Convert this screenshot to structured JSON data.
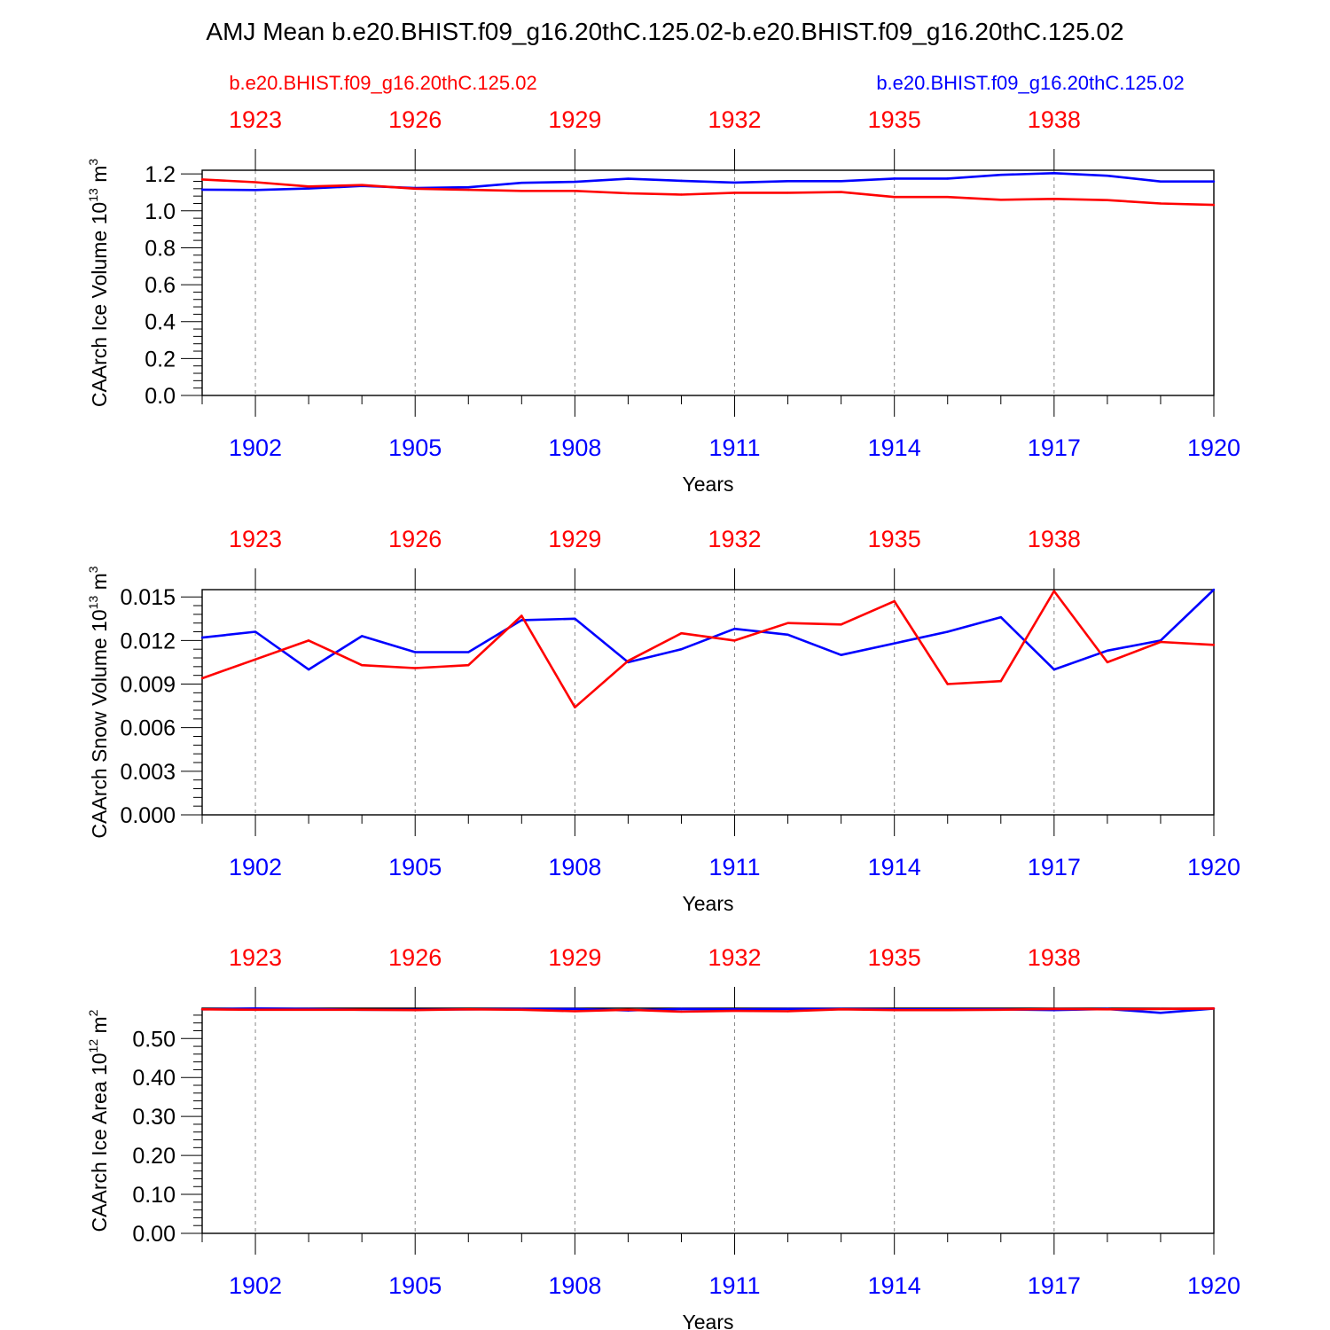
{
  "title": "AMJ Mean b.e20.BHIST.f09_g16.20thC.125.02-b.e20.BHIST.f09_g16.20thC.125.02",
  "legend": {
    "left_label": "b.e20.BHIST.f09_g16.20thC.125.02",
    "right_label": "b.e20.BHIST.f09_g16.20thC.125.02"
  },
  "colors": {
    "red": "#ff0000",
    "blue": "#0000ff",
    "axis": "#000000",
    "grid": "#888888"
  },
  "chart_data": [
    {
      "type": "line",
      "ylabel": "CAArch Ice Volume 10",
      "ylabel_exp": "13",
      "ylabel_unit": " m",
      "ylabel_unit_exp": "3",
      "xlabel": "Years",
      "ylim": [
        0,
        1.22
      ],
      "yticks": [
        "0.0",
        "0.2",
        "0.4",
        "0.6",
        "0.8",
        "1.0",
        "1.2"
      ],
      "ytick_values": [
        0,
        0.2,
        0.4,
        0.6,
        0.8,
        1.0,
        1.2
      ],
      "bottom_ticks": [
        "1902",
        "1905",
        "1908",
        "1911",
        "1914",
        "1917",
        "1920"
      ],
      "top_ticks": [
        "1923",
        "1926",
        "1929",
        "1932",
        "1935",
        "1938"
      ],
      "x": [
        1901,
        1902,
        1903,
        1904,
        1905,
        1906,
        1907,
        1908,
        1909,
        1910,
        1911,
        1912,
        1913,
        1914,
        1915,
        1916,
        1917,
        1918,
        1919,
        1920
      ],
      "series": [
        {
          "color": "blue",
          "axis": "bottom",
          "values": [
            1.115,
            1.113,
            1.121,
            1.135,
            1.124,
            1.128,
            1.152,
            1.157,
            1.174,
            1.163,
            1.153,
            1.161,
            1.161,
            1.175,
            1.175,
            1.195,
            1.204,
            1.19,
            1.159,
            1.159
          ]
        },
        {
          "color": "red",
          "axis": "top",
          "values": [
            1.17,
            1.155,
            1.132,
            1.14,
            1.12,
            1.114,
            1.108,
            1.108,
            1.095,
            1.088,
            1.098,
            1.098,
            1.102,
            1.075,
            1.075,
            1.06,
            1.065,
            1.058,
            1.04,
            1.032
          ]
        }
      ]
    },
    {
      "type": "line",
      "ylabel": "CAArch Snow Volume 10",
      "ylabel_exp": "13",
      "ylabel_unit": " m",
      "ylabel_unit_exp": "3",
      "xlabel": "Years",
      "ylim": [
        0,
        0.0155
      ],
      "yticks": [
        "0.000",
        "0.003",
        "0.006",
        "0.009",
        "0.012",
        "0.015"
      ],
      "ytick_values": [
        0,
        0.003,
        0.006,
        0.009,
        0.012,
        0.015
      ],
      "bottom_ticks": [
        "1902",
        "1905",
        "1908",
        "1911",
        "1914",
        "1917",
        "1920"
      ],
      "top_ticks": [
        "1923",
        "1926",
        "1929",
        "1932",
        "1935",
        "1938"
      ],
      "x": [
        1901,
        1902,
        1903,
        1904,
        1905,
        1906,
        1907,
        1908,
        1909,
        1910,
        1911,
        1912,
        1913,
        1914,
        1915,
        1916,
        1917,
        1918,
        1919,
        1920
      ],
      "series": [
        {
          "color": "blue",
          "axis": "bottom",
          "values": [
            0.0122,
            0.0126,
            0.01,
            0.0123,
            0.0112,
            0.0112,
            0.0134,
            0.0135,
            0.0105,
            0.0114,
            0.0128,
            0.0124,
            0.011,
            0.0118,
            0.0126,
            0.0136,
            0.01,
            0.0113,
            0.012,
            0.0155
          ]
        },
        {
          "color": "red",
          "axis": "top",
          "values": [
            0.0094,
            0.0107,
            0.012,
            0.0103,
            0.0101,
            0.0103,
            0.0137,
            0.0074,
            0.0106,
            0.0125,
            0.012,
            0.0132,
            0.0131,
            0.0147,
            0.009,
            0.0092,
            0.0154,
            0.0105,
            0.0119,
            0.0117
          ]
        }
      ]
    },
    {
      "type": "line",
      "ylabel": "CAArch Ice Area 10",
      "ylabel_exp": "12",
      "ylabel_unit": " m",
      "ylabel_unit_exp": "2",
      "xlabel": "Years",
      "ylim": [
        0,
        0.578
      ],
      "yticks": [
        "0.00",
        "0.10",
        "0.20",
        "0.30",
        "0.40",
        "0.50"
      ],
      "ytick_values": [
        0,
        0.1,
        0.2,
        0.3,
        0.4,
        0.5
      ],
      "bottom_ticks": [
        "1902",
        "1905",
        "1908",
        "1911",
        "1914",
        "1917",
        "1920"
      ],
      "top_ticks": [
        "1923",
        "1926",
        "1929",
        "1932",
        "1935",
        "1938"
      ],
      "x": [
        1901,
        1902,
        1903,
        1904,
        1905,
        1906,
        1907,
        1908,
        1909,
        1910,
        1911,
        1912,
        1913,
        1914,
        1915,
        1916,
        1917,
        1918,
        1919,
        1920
      ],
      "series": [
        {
          "color": "blue",
          "axis": "bottom",
          "values": [
            0.575,
            0.577,
            0.576,
            0.574,
            0.574,
            0.575,
            0.576,
            0.576,
            0.572,
            0.576,
            0.575,
            0.576,
            0.576,
            0.575,
            0.575,
            0.575,
            0.573,
            0.576,
            0.566,
            0.577
          ]
        },
        {
          "color": "red",
          "axis": "top",
          "values": [
            0.575,
            0.574,
            0.574,
            0.574,
            0.573,
            0.575,
            0.574,
            0.57,
            0.574,
            0.569,
            0.571,
            0.57,
            0.575,
            0.573,
            0.573,
            0.574,
            0.576,
            0.575,
            0.576,
            0.577
          ]
        }
      ]
    }
  ]
}
